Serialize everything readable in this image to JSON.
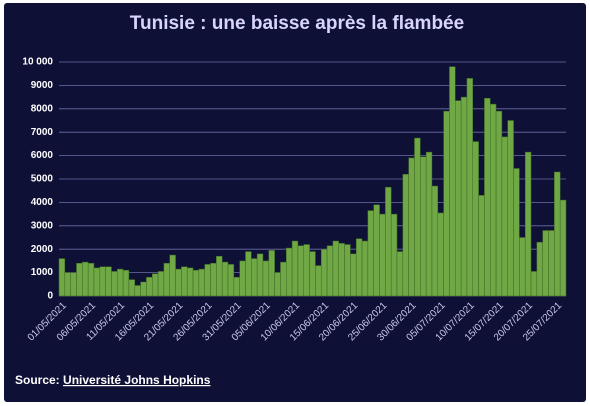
{
  "chart_data": {
    "type": "bar",
    "title": "Tunisie : une baisse après la flambée",
    "source": {
      "prefix": "Source:",
      "link": "Université Johns Hopkins"
    },
    "categories": [
      "01/05/2021",
      null,
      null,
      null,
      null,
      "06/05/2021",
      null,
      null,
      null,
      null,
      "11/05/2021",
      null,
      null,
      null,
      null,
      "16/05/2021",
      null,
      null,
      null,
      null,
      "21/05/2021",
      null,
      null,
      null,
      null,
      "26/05/2021",
      null,
      null,
      null,
      null,
      "31/05/2021",
      null,
      null,
      null,
      null,
      "05/06/2021",
      null,
      null,
      null,
      null,
      "10/06/2021",
      null,
      null,
      null,
      null,
      "15/06/2021",
      null,
      null,
      null,
      null,
      "20/06/2021",
      null,
      null,
      null,
      null,
      "25/06/2021",
      null,
      null,
      null,
      null,
      "30/06/2021",
      null,
      null,
      null,
      null,
      "05/07/2021",
      null,
      null,
      null,
      null,
      "10/07/2021",
      null,
      null,
      null,
      null,
      "15/07/2021",
      null,
      null,
      null,
      null,
      "20/07/2021",
      null,
      null,
      null,
      null,
      "25/07/2021",
      null
    ],
    "values": [
      1600,
      1000,
      1000,
      1400,
      1450,
      1400,
      1200,
      1250,
      1250,
      1050,
      1150,
      1100,
      700,
      450,
      600,
      800,
      950,
      1050,
      1400,
      1750,
      1150,
      1250,
      1200,
      1100,
      1150,
      1350,
      1400,
      1700,
      1450,
      1350,
      800,
      1500,
      1900,
      1600,
      1800,
      1500,
      1950,
      1000,
      1450,
      2050,
      2350,
      2150,
      2200,
      1900,
      1300,
      2000,
      2150,
      2350,
      2250,
      2200,
      1800,
      2450,
      2350,
      3650,
      3900,
      3500,
      4650,
      3500,
      1900,
      5200,
      5900,
      6750,
      5950,
      6150,
      4700,
      3550,
      7900,
      9800,
      8350,
      8500,
      9300,
      6600,
      4300,
      8450,
      8200,
      7900,
      6800,
      7500,
      5450,
      2500,
      6150,
      1050,
      2300,
      2800,
      2800,
      5300,
      4100
    ],
    "color": "#6fa845",
    "ylim": [
      0,
      10000
    ],
    "yticks": [
      0,
      1000,
      2000,
      3000,
      4000,
      5000,
      6000,
      7000,
      8000,
      9000,
      {
        "value": 10000,
        "label": "10 000"
      }
    ],
    "grid": true
  }
}
